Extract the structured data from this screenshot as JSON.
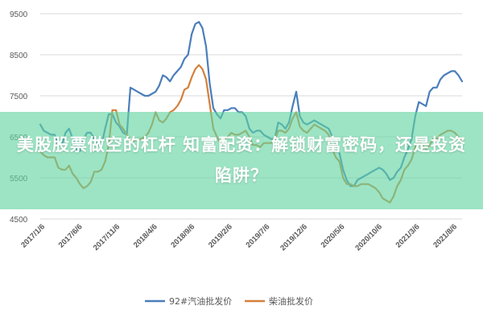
{
  "chart_data": {
    "type": "line",
    "title": "",
    "xlabel": "",
    "ylabel": "",
    "ylim": [
      4500,
      9500
    ],
    "yticks": [
      "9500",
      "8500",
      "7500",
      "6500",
      "5500",
      "4500"
    ],
    "xticks": [
      "2017/1/6",
      "2017/6/6",
      "2017/11/6",
      "2018/4/6",
      "2018/9/6",
      "2019/2/6",
      "2019/7/6",
      "2019/12/6",
      "2020/5/6",
      "2020/10/6",
      "2021/3/6",
      "2021/8/6"
    ],
    "grid": "horizontal",
    "legend": "bottom",
    "series": [
      {
        "name": "92#汽油批发价",
        "color": "#4a7ebb",
        "values": [
          6800,
          6650,
          6600,
          6550,
          6550,
          6300,
          6300,
          6600,
          6700,
          6450,
          6200,
          6150,
          6450,
          6600,
          6600,
          6450,
          6300,
          6300,
          6700,
          7050,
          7050,
          6850,
          6750,
          6600,
          6550,
          7700,
          7650,
          7600,
          7550,
          7500,
          7500,
          7550,
          7600,
          7750,
          8000,
          7950,
          7850,
          8000,
          8100,
          8200,
          8400,
          8500,
          9000,
          9250,
          9300,
          9150,
          8700,
          7800,
          7200,
          7050,
          6950,
          7150,
          7150,
          7200,
          7200,
          7100,
          7100,
          7000,
          6700,
          6600,
          6650,
          6650,
          6550,
          6500,
          6450,
          6450,
          6850,
          6800,
          6700,
          6850,
          7250,
          7600,
          7000,
          6850,
          6800,
          6850,
          6900,
          6850,
          6800,
          6750,
          6700,
          6500,
          6300,
          6100,
          5700,
          5450,
          5300,
          5300,
          5450,
          5500,
          5550,
          5600,
          5650,
          5700,
          5750,
          5700,
          5600,
          5450,
          5500,
          5650,
          5750,
          6000,
          6200,
          6450,
          7000,
          7350,
          7300,
          7250,
          7600,
          7700,
          7700,
          7900,
          8000,
          8050,
          8100,
          8100,
          8000,
          7850
        ]
      },
      {
        "name": "柴油批发价",
        "color": "#d4803a",
        "values": [
          6150,
          6050,
          6000,
          6000,
          6000,
          5750,
          5700,
          5700,
          5800,
          5600,
          5500,
          5350,
          5250,
          5300,
          5400,
          5650,
          5650,
          5700,
          5900,
          6300,
          7150,
          7150,
          6800,
          6700,
          6550,
          6400,
          6400,
          6450,
          6450,
          6500,
          6600,
          6800,
          7100,
          6900,
          6850,
          6950,
          7100,
          7150,
          7250,
          7400,
          7650,
          7700,
          7950,
          8150,
          8250,
          8150,
          7900,
          7300,
          6700,
          6500,
          6350,
          6450,
          6500,
          6600,
          6550,
          6550,
          6600,
          6650,
          6500,
          6300,
          6300,
          6250,
          6350,
          6350,
          6350,
          6400,
          6650,
          6650,
          6600,
          6700,
          6950,
          7100,
          6750,
          6650,
          6600,
          6700,
          6800,
          6750,
          6700,
          6650,
          6550,
          6200,
          6000,
          5900,
          5500,
          5350,
          5350,
          5300,
          5300,
          5350,
          5350,
          5350,
          5300,
          5250,
          5150,
          5000,
          4950,
          4900,
          5050,
          5300,
          5450,
          5700,
          5800,
          5950,
          6250,
          6400,
          6300,
          6200,
          6300,
          6450,
          6450,
          6550,
          6600,
          6650,
          6650,
          6600,
          6500,
          6400
        ]
      }
    ]
  },
  "overlay": {
    "title": "美股股票做空的杠杆 知富配资：解锁财富密码，还是投资陷阱？"
  }
}
